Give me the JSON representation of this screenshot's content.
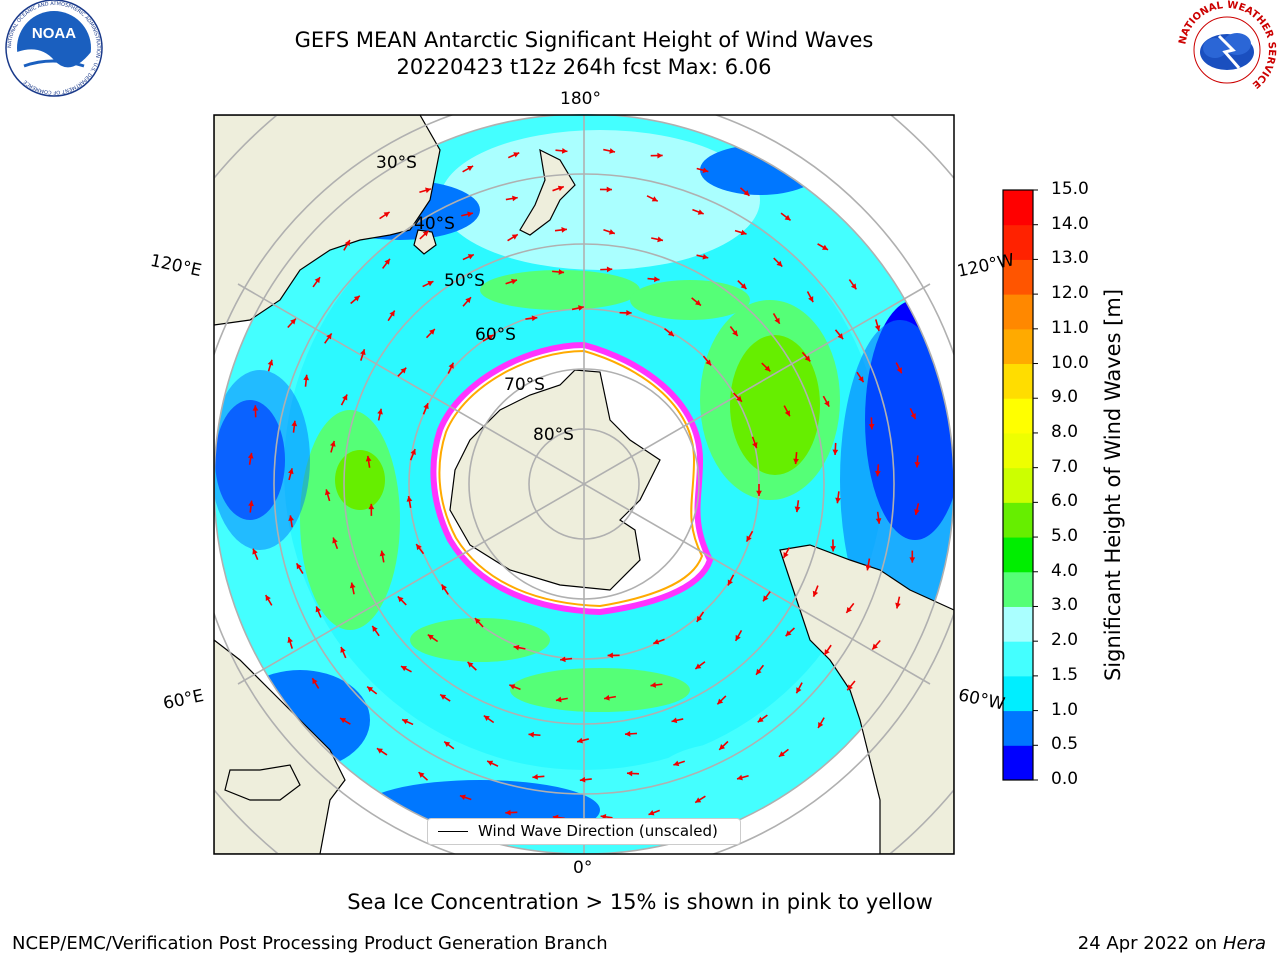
{
  "header": {
    "title_line1": "GEFS MEAN Antarctic Significant Height of Wind Waves",
    "title_line2": "20220423 t12z 264h fcst   Max: 6.06"
  },
  "logos": {
    "left": {
      "name": "noaa-logo",
      "text": "NOAA",
      "ring_text": "NATIONAL OCEANIC AND ATMOSPHERIC ADMINISTRATION · U.S. DEPARTMENT OF COMMERCE"
    },
    "right": {
      "name": "nws-logo",
      "ring_text": "NATIONAL WEATHER SERVICE"
    }
  },
  "map": {
    "projection": "south-polar-stereographic",
    "longitude_labels": [
      "180°",
      "120°E",
      "120°W",
      "60°E",
      "60°W",
      "0°"
    ],
    "latitude_labels": [
      "30°S",
      "40°S",
      "50°S",
      "60°S",
      "70°S",
      "80°S"
    ],
    "colors": {
      "land": "#eeeedc",
      "ice_edge": [
        "#ff33ff",
        "#ffaa00",
        "#ffff66"
      ],
      "arrow": "#ee0000",
      "grid": "#b0b0b0"
    },
    "legend": {
      "label": "Wind Wave Direction (unscaled)"
    }
  },
  "colorbar": {
    "label": "Significant Height of Wind Waves [m]",
    "ticks": [
      "0.0",
      "0.5",
      "1.0",
      "1.5",
      "2.0",
      "3.0",
      "4.0",
      "5.0",
      "6.0",
      "7.0",
      "8.0",
      "9.0",
      "10.0",
      "11.0",
      "12.0",
      "13.0",
      "14.0",
      "15.0"
    ],
    "colors": [
      "#0000ff",
      "#0077ff",
      "#00eeff",
      "#44ffff",
      "#aaffff",
      "#55ff77",
      "#00ee00",
      "#66ee00",
      "#ccff00",
      "#eeff00",
      "#ffff00",
      "#ffdd00",
      "#ffaa00",
      "#ff8800",
      "#ff5500",
      "#ff2200",
      "#ff0000"
    ]
  },
  "footer": {
    "note": "Sea Ice Concentration > 15% is shown in pink to yellow",
    "left": "NCEP/EMC/Verification Post Processing Product Generation Branch",
    "right_date": "24 Apr 2022 on ",
    "right_system": "Hera"
  }
}
